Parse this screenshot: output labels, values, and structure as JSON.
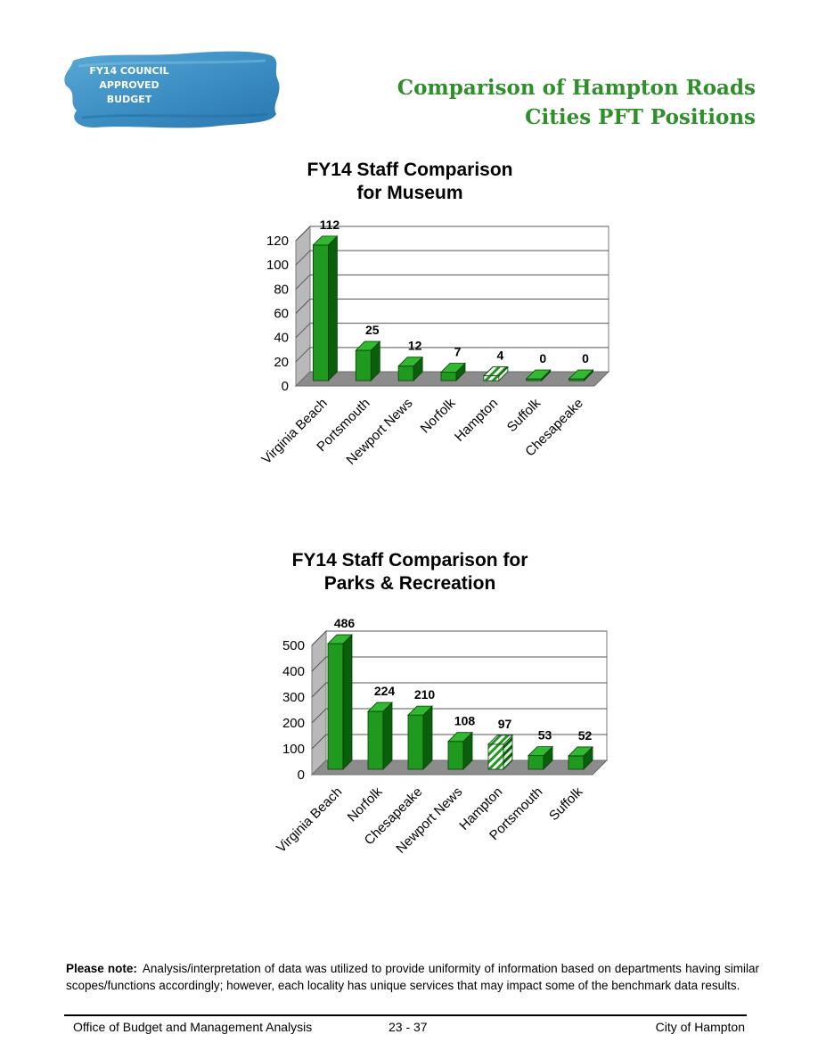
{
  "logo": {
    "lines": [
      "FY14 COUNCIL",
      "APPROVED",
      "BUDGET"
    ],
    "color": "#3d8fc4"
  },
  "header": {
    "title_line1": "Comparison of Hampton Roads",
    "title_line2": "Cities PFT Positions",
    "title_color": "#2f8f2a"
  },
  "colors": {
    "bar_front": "#1f9a1f",
    "bar_side": "#0b5e0b",
    "bar_top": "#32b932",
    "highlight_pattern": "green-white diagonal stripes",
    "floor": "#8c8c8c"
  },
  "chart_data": [
    {
      "type": "bar",
      "title_line1": "FY14  Staff Comparison",
      "title_line2": "for Museum",
      "categories": [
        "Virginia Beach",
        "Portsmouth",
        "Newport News",
        "Norfolk",
        "Hampton",
        "Suffolk",
        "Chesapeake"
      ],
      "values": [
        112,
        25,
        12,
        7,
        4,
        0,
        0
      ],
      "value_labels": [
        "112",
        "25",
        "12",
        "7",
        "4",
        "0",
        "0"
      ],
      "highlight": "Hampton",
      "yticks": [
        "0",
        "20",
        "40",
        "60",
        "80",
        "100",
        "120"
      ],
      "ylim": [
        0,
        120
      ],
      "grid": true,
      "style": "3d"
    },
    {
      "type": "bar",
      "title_line1": "FY14  Staff Comparison for",
      "title_line2": "Parks & Recreation",
      "categories": [
        "Virginia Beach",
        "Norfolk",
        "Chesapeake",
        "Newport News",
        "Hampton",
        "Portsmouth",
        "Suffolk"
      ],
      "values": [
        486,
        224,
        210,
        108,
        97,
        53,
        52
      ],
      "value_labels": [
        "486",
        "224",
        "210",
        "108",
        "97",
        "53",
        "52"
      ],
      "highlight": "Hampton",
      "yticks": [
        "0",
        "100",
        "200",
        "300",
        "400",
        "500"
      ],
      "ylim": [
        0,
        500
      ],
      "grid": true,
      "style": "3d"
    }
  ],
  "note": {
    "label": "Please note:",
    "text": "Analysis/interpretation of data was utilized to provide uniformity of information based on departments having similar scopes/functions accordingly; however, each locality has unique services that may impact some of the benchmark data results."
  },
  "footer": {
    "left": "Office of Budget and Management Analysis",
    "center": "23 - 37",
    "right": "City of Hampton"
  }
}
